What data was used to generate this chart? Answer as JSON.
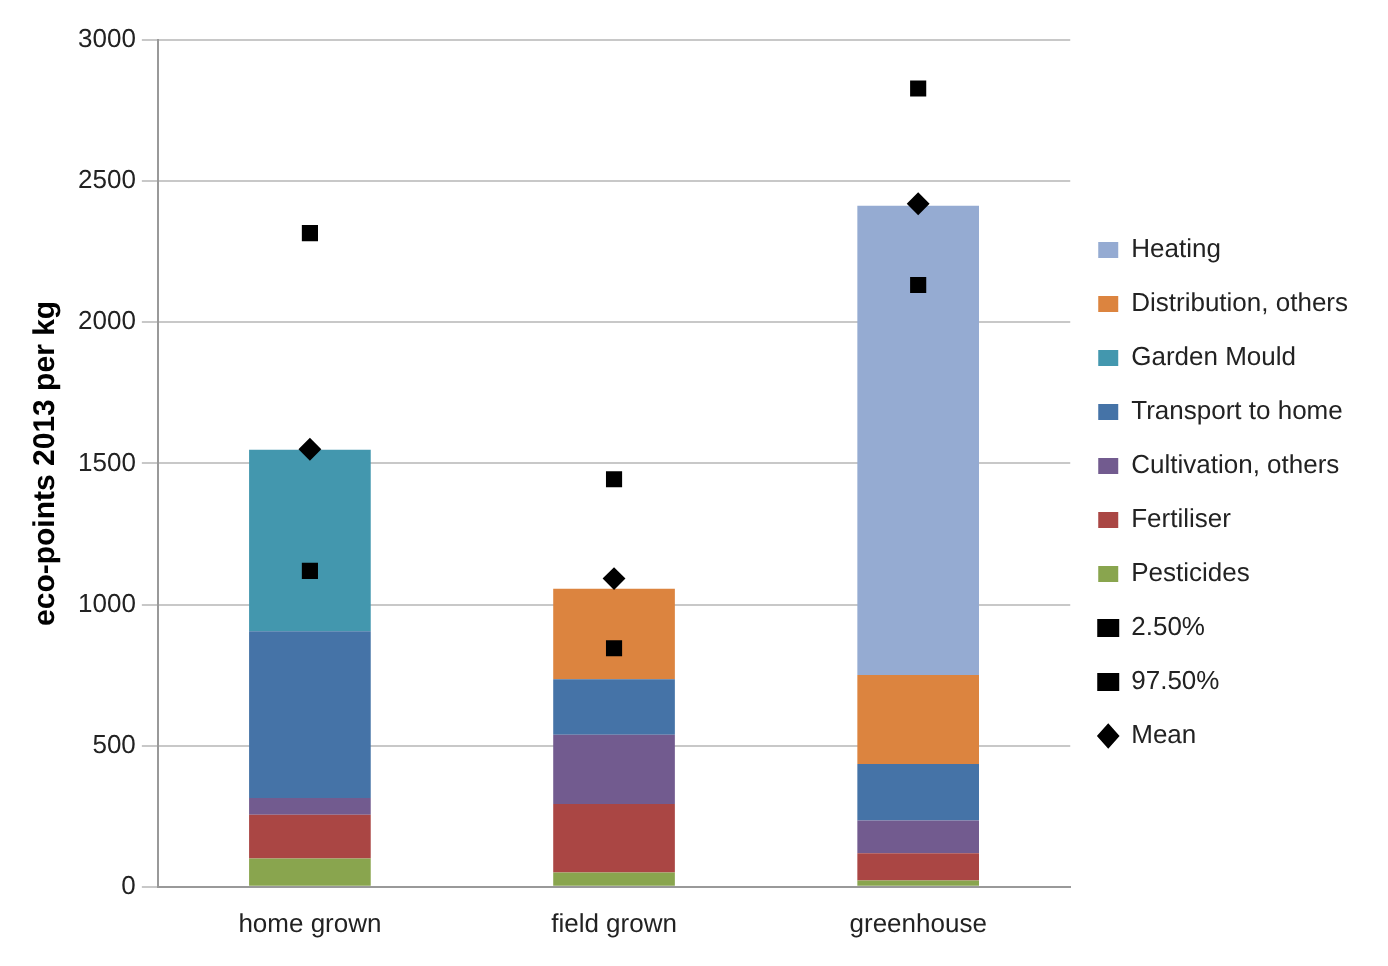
{
  "chart_data": {
    "type": "bar",
    "stacked": true,
    "ylabel": "eco-points 2013 per kg",
    "categories": [
      "home grown",
      "field grown",
      "greenhouse"
    ],
    "ylim": [
      0,
      3000
    ],
    "yticks": [
      0,
      500,
      1000,
      1500,
      2000,
      2500,
      3000
    ],
    "grid": "y",
    "legend": "right",
    "series": [
      {
        "name": "Pesticides",
        "color": "#89a54e",
        "values": [
          100,
          51,
          22
        ]
      },
      {
        "name": "Fertiliser",
        "color": "#aa4644",
        "values": [
          155,
          242,
          97
        ]
      },
      {
        "name": "Cultivation, others",
        "color": "#725b8f",
        "values": [
          60,
          246,
          116
        ]
      },
      {
        "name": "Transport to home",
        "color": "#4573a7",
        "values": [
          590,
          196,
          200
        ]
      },
      {
        "name": "Garden Mould",
        "color": "#4397ae",
        "values": [
          643,
          null,
          null
        ]
      },
      {
        "name": "Distribution, others",
        "color": "#dc843f",
        "values": [
          null,
          321,
          315
        ]
      },
      {
        "name": "Heating",
        "color": "#95abd2",
        "values": [
          null,
          null,
          1663
        ]
      },
      {
        "name": "Mean",
        "type": "scatter",
        "marker": "diamond",
        "color": "#000000",
        "x": [
          "home grown",
          "field grown",
          "greenhouse"
        ],
        "values": [
          1550,
          1092,
          2420
        ]
      },
      {
        "name": "97.50%",
        "type": "scatter",
        "color": "#000000",
        "x": [
          "home grown",
          "field grown",
          "greenhouse"
        ],
        "values": [
          2316,
          1444,
          2828
        ]
      },
      {
        "name": "2.50%",
        "type": "scatter",
        "color": "#000000",
        "x": [
          "home grown",
          "field grown",
          "greenhouse"
        ],
        "values": [
          1119,
          845,
          2132
        ]
      }
    ]
  }
}
